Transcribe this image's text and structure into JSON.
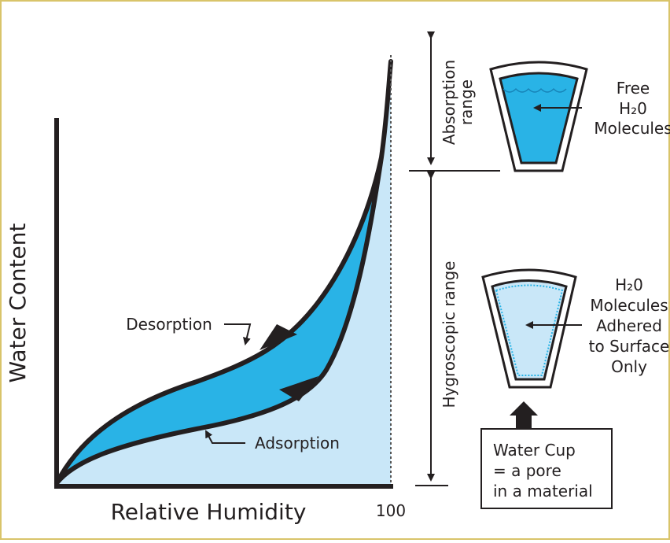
{
  "axes": {
    "y_label": "Water Content",
    "x_label": "Relative Humidity",
    "x_end": "100"
  },
  "curves": {
    "desorption": "Desorption",
    "adsorption": "Adsorption"
  },
  "ranges": {
    "absorption": [
      "Absorption",
      "range"
    ],
    "hygroscopic": "Hygroscopic range"
  },
  "cups": [
    {
      "lines": [
        "Free",
        "H₂0",
        "Molecules"
      ]
    },
    {
      "lines": [
        "H₂0",
        "Molecules",
        "Adhered",
        "to Surface",
        "Only"
      ]
    }
  ],
  "note": {
    "lines": [
      "Water Cup",
      "= a pore",
      "in a material"
    ]
  }
}
